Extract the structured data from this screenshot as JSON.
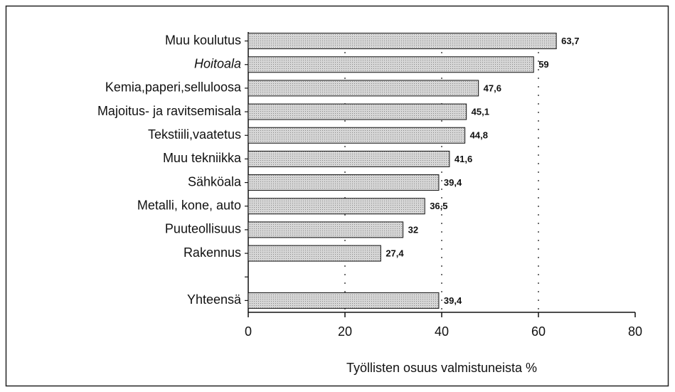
{
  "chart_data": {
    "type": "bar",
    "orientation": "horizontal",
    "x_label": "Työllisten osuus valmistuneista %",
    "categories": [
      "Muu koulutus",
      "Hoitoala",
      "Kemia,paperi,selluloosa",
      "Majoitus- ja ravitsemisala",
      "Tekstiili,vaatetus",
      "Muu tekniikka",
      "Sähköala",
      "Metalli, kone, auto",
      "Puuteollisuus",
      "Rakennus",
      null,
      "Yhteensä"
    ],
    "values": [
      63.7,
      59,
      47.6,
      45.1,
      44.8,
      41.6,
      39.4,
      36.5,
      32,
      27.4,
      null,
      39.4
    ],
    "value_labels": [
      "63,7",
      "59",
      "47,6",
      "45,1",
      "44,8",
      "41,6",
      "39,4",
      "36,5",
      "32",
      "27,4",
      null,
      "39,4"
    ],
    "color": "#c8c8c8",
    "xlim": [
      0,
      80
    ],
    "xticks": [
      0,
      20,
      40,
      60,
      80
    ],
    "grid": true
  }
}
